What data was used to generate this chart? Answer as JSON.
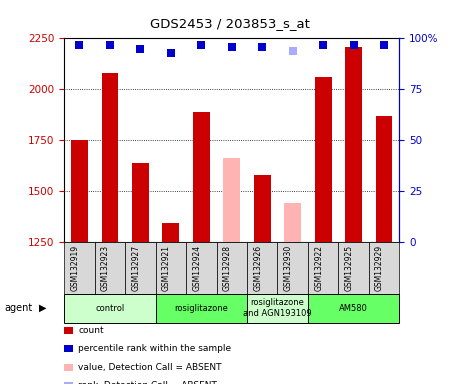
{
  "title": "GDS2453 / 203853_s_at",
  "samples": [
    "GSM132919",
    "GSM132923",
    "GSM132927",
    "GSM132921",
    "GSM132924",
    "GSM132928",
    "GSM132926",
    "GSM132930",
    "GSM132922",
    "GSM132925",
    "GSM132929"
  ],
  "bar_values": [
    1750,
    2080,
    1640,
    1345,
    1890,
    1660,
    1580,
    1440,
    2060,
    2210,
    1870
  ],
  "bar_colors": [
    "#cc0000",
    "#cc0000",
    "#cc0000",
    "#cc0000",
    "#cc0000",
    "#ffb3b3",
    "#cc0000",
    "#ffb3b3",
    "#cc0000",
    "#cc0000",
    "#cc0000"
  ],
  "rank_values": [
    97,
    97,
    95,
    93,
    97,
    96,
    96,
    94,
    97,
    97,
    97
  ],
  "rank_colors": [
    "#0000cc",
    "#0000cc",
    "#0000cc",
    "#0000cc",
    "#0000cc",
    "#0000cc",
    "#0000cc",
    "#aaaaff",
    "#0000cc",
    "#0000cc",
    "#0000cc"
  ],
  "ylim_left": [
    1250,
    2250
  ],
  "ylim_right": [
    0,
    100
  ],
  "yticks_left": [
    1250,
    1500,
    1750,
    2000,
    2250
  ],
  "yticks_right": [
    0,
    25,
    50,
    75,
    100
  ],
  "ytick_labels_right": [
    "0",
    "25",
    "50",
    "75",
    "100%"
  ],
  "groups": [
    {
      "label": "control",
      "start": 0,
      "end": 3,
      "color": "#ccffcc"
    },
    {
      "label": "rosiglitazone",
      "start": 3,
      "end": 6,
      "color": "#66ff66"
    },
    {
      "label": "rosiglitazone\nand AGN193109",
      "start": 6,
      "end": 8,
      "color": "#ccffcc"
    },
    {
      "label": "AM580",
      "start": 8,
      "end": 11,
      "color": "#66ff66"
    }
  ],
  "legend_items": [
    {
      "color": "#cc0000",
      "label": "count"
    },
    {
      "color": "#0000cc",
      "label": "percentile rank within the sample"
    },
    {
      "color": "#ffb3b3",
      "label": "value, Detection Call = ABSENT"
    },
    {
      "color": "#aaaaff",
      "label": "rank, Detection Call = ABSENT"
    }
  ],
  "left_axis_color": "#cc0000",
  "right_axis_color": "#0000cc",
  "bar_width": 0.55,
  "rank_marker_size": 6,
  "plot_bg": "#ffffff",
  "tick_cell_bg": "#d8d8d8"
}
